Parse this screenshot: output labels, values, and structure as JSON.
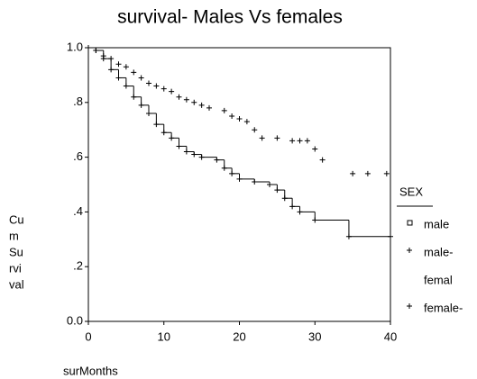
{
  "chart_data": {
    "type": "survival",
    "title": "survival- Males Vs females",
    "x_label": "surMonths",
    "y_label_lines": [
      "Cu",
      "m",
      "Su",
      "rvi",
      "val"
    ],
    "xlim": [
      0,
      40
    ],
    "xticks": [
      0,
      10,
      20,
      30,
      40
    ],
    "ylim": [
      0,
      1
    ],
    "yticks": [
      {
        "value": 0,
        "label": "0.0"
      },
      {
        "value": 0.2,
        "label": ".2"
      },
      {
        "value": 0.4,
        "label": ".4"
      },
      {
        "value": 0.6,
        "label": ".6"
      },
      {
        "value": 0.8,
        "label": ".8"
      },
      {
        "value": 1,
        "label": "1.0"
      }
    ],
    "series": [
      {
        "color": "#000000",
        "step": true,
        "x": [
          0,
          1,
          2,
          3,
          4,
          5,
          6,
          7,
          8,
          9,
          10,
          11,
          12,
          13,
          14,
          15,
          17,
          18,
          19,
          20,
          22,
          24,
          25,
          26,
          27,
          28,
          30,
          34.5,
          40
        ],
        "values": [
          1.0,
          0.99,
          0.96,
          0.92,
          0.89,
          0.86,
          0.82,
          0.79,
          0.76,
          0.72,
          0.69,
          0.67,
          0.64,
          0.62,
          0.61,
          0.6,
          0.59,
          0.56,
          0.54,
          0.52,
          0.51,
          0.5,
          0.48,
          0.45,
          0.42,
          0.4,
          0.37,
          0.31,
          0.31
        ]
      },
      {
        "color": "#000000",
        "step": false,
        "x": [
          0,
          1,
          2,
          3,
          4,
          5,
          6,
          7,
          8,
          9,
          10,
          11,
          12,
          13,
          14,
          15,
          16,
          18,
          19,
          20,
          21,
          22,
          23,
          25,
          27,
          28,
          29,
          30,
          31,
          35,
          37,
          39.5
        ],
        "values": [
          1.0,
          0.99,
          0.97,
          0.96,
          0.94,
          0.93,
          0.91,
          0.89,
          0.87,
          0.86,
          0.85,
          0.84,
          0.82,
          0.81,
          0.8,
          0.79,
          0.78,
          0.77,
          0.75,
          0.74,
          0.73,
          0.7,
          0.67,
          0.67,
          0.66,
          0.66,
          0.66,
          0.63,
          0.59,
          0.54,
          0.54,
          0.54
        ]
      }
    ],
    "legend": {
      "title": "SEX",
      "items": [
        {
          "label": "male",
          "symbol": "square"
        },
        {
          "label": "male-",
          "symbol": "plus"
        },
        {
          "label": "femal",
          "symbol": "none"
        },
        {
          "label": "female-",
          "symbol": "plus"
        }
      ]
    }
  }
}
